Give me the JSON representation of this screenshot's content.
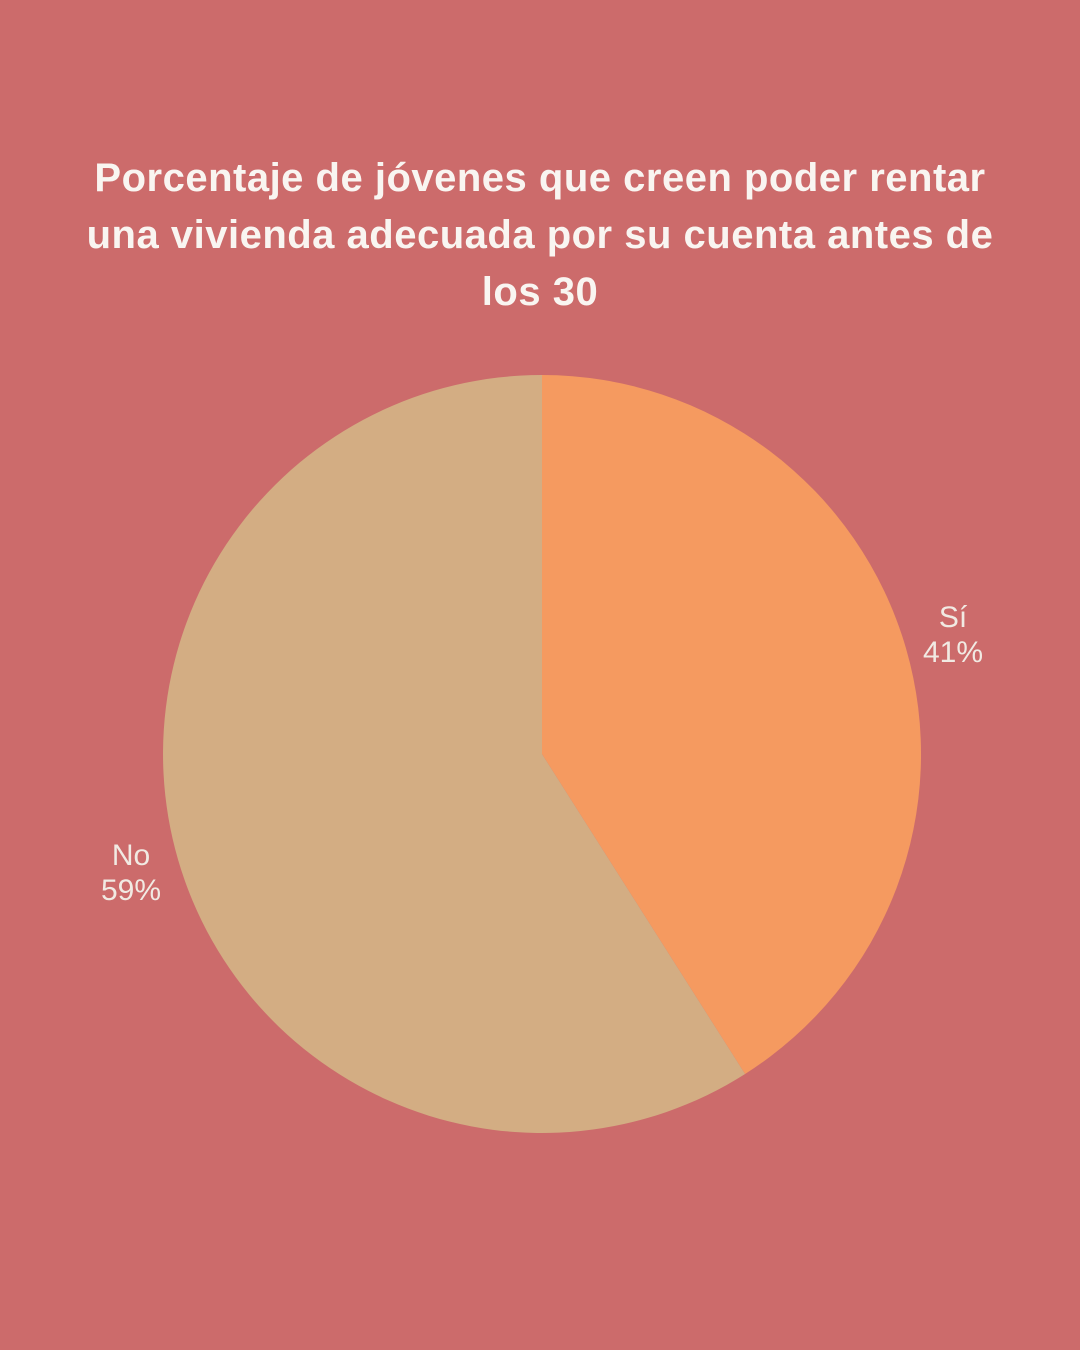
{
  "palette": {
    "background": "#CC6B6B",
    "title_color": "#F9F5F1",
    "label_color": "#F1EAE3"
  },
  "title": {
    "text": "Porcentaje de jóvenes que creen poder rentar una vivienda adecuada por su cuenta antes de los 30",
    "lines": [
      "Porcentaje de jóvenes que creen poder rentar",
      "una vivienda adecuada por su cuenta antes de",
      "los 30"
    ]
  },
  "chart_data": {
    "type": "pie",
    "title": "Porcentaje de jóvenes que creen poder rentar una vivienda adecuada por su cuenta antes de los 30",
    "categories": [
      "Sí",
      "No"
    ],
    "values": [
      41,
      59
    ],
    "unit": "%",
    "colors": [
      "#F59A60",
      "#D3AD83"
    ],
    "start_angle_deg": 0,
    "direction": "clockwise",
    "legend_position": "outside-labels",
    "labels": [
      "Sí 41%",
      "No 59%"
    ]
  }
}
